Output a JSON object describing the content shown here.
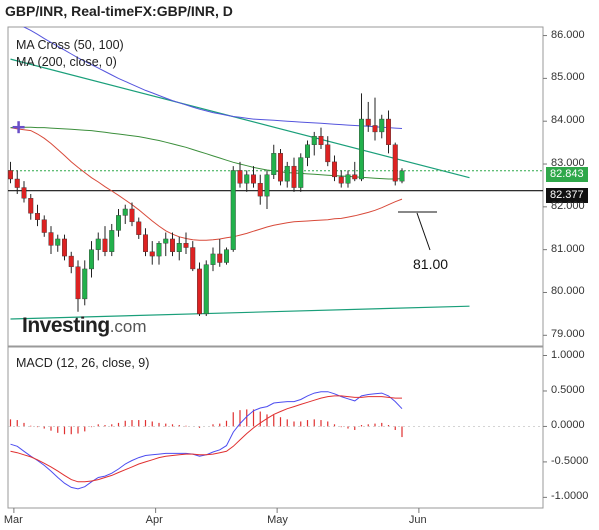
{
  "header": {
    "title": "GBP/INR, Real-timeFX:GBP/INR, D"
  },
  "indicators": {
    "ma_cross": "MA Cross (50, 100)",
    "ma200": "MA (200, close, 0)",
    "macd": "MACD (12, 26, close, 9)"
  },
  "logo": {
    "brand": "Investing",
    "suffix": ".com"
  },
  "annotation": {
    "label": "81.00"
  },
  "price_tags": {
    "last": "82.843",
    "level": "82.377"
  },
  "colors": {
    "up": "#22b14c",
    "down": "#dd2222",
    "ma50": "#d84a3a",
    "ma100": "#3c8f3c",
    "ma200": "#5555dd",
    "trend": "#1a9f7a",
    "macd": "#4d4df0",
    "signal": "#e03030",
    "last_tag": "#2fa84a"
  },
  "chart_data": [
    {
      "type": "candlestick",
      "title": "GBP/INR, Real-timeFX:GBP/INR, D",
      "x_ticks": [
        "Mar",
        "Apr",
        "May",
        "Jun"
      ],
      "y_ticks": [
        "86.000",
        "85.000",
        "84.000",
        "83.000",
        "82.000",
        "81.000",
        "80.000",
        "79.000"
      ],
      "ylim": [
        78.75,
        86.2
      ],
      "ohlc": [
        [
          82.85,
          83.05,
          82.55,
          82.65
        ],
        [
          82.65,
          82.85,
          82.3,
          82.45
        ],
        [
          82.45,
          82.6,
          82.1,
          82.2
        ],
        [
          82.2,
          82.3,
          81.7,
          81.85
        ],
        [
          81.85,
          82.05,
          81.55,
          81.7
        ],
        [
          81.7,
          81.8,
          81.3,
          81.4
        ],
        [
          81.4,
          81.55,
          80.9,
          81.1
        ],
        [
          81.1,
          81.35,
          80.95,
          81.25
        ],
        [
          81.25,
          81.35,
          80.75,
          80.85
        ],
        [
          80.85,
          80.95,
          80.45,
          80.6
        ],
        [
          80.6,
          80.75,
          79.55,
          79.85
        ],
        [
          79.85,
          80.75,
          79.7,
          80.55
        ],
        [
          80.55,
          81.2,
          80.35,
          81.0
        ],
        [
          81.0,
          81.4,
          80.75,
          81.25
        ],
        [
          81.25,
          81.55,
          80.85,
          80.95
        ],
        [
          80.95,
          81.6,
          80.85,
          81.45
        ],
        [
          81.45,
          81.95,
          81.3,
          81.8
        ],
        [
          81.8,
          82.05,
          81.6,
          81.95
        ],
        [
          81.95,
          82.1,
          81.55,
          81.65
        ],
        [
          81.65,
          81.75,
          81.25,
          81.35
        ],
        [
          81.35,
          81.5,
          80.85,
          80.95
        ],
        [
          80.95,
          81.2,
          80.65,
          80.85
        ],
        [
          80.85,
          81.2,
          80.65,
          81.15
        ],
        [
          81.15,
          81.4,
          80.85,
          81.25
        ],
        [
          81.25,
          81.4,
          80.85,
          80.95
        ],
        [
          80.95,
          81.3,
          80.75,
          81.15
        ],
        [
          81.15,
          81.4,
          80.9,
          81.05
        ],
        [
          81.05,
          81.2,
          80.5,
          80.55
        ],
        [
          80.55,
          80.7,
          79.45,
          79.5
        ],
        [
          79.5,
          80.75,
          79.45,
          80.65
        ],
        [
          80.65,
          81.05,
          80.5,
          80.9
        ],
        [
          80.9,
          81.25,
          80.6,
          80.7
        ],
        [
          80.7,
          81.05,
          80.65,
          81.0
        ],
        [
          81.0,
          82.95,
          80.95,
          82.85
        ],
        [
          82.85,
          83.05,
          82.45,
          82.55
        ],
        [
          82.55,
          82.85,
          82.35,
          82.75
        ],
        [
          82.75,
          82.95,
          82.45,
          82.55
        ],
        [
          82.55,
          82.75,
          82.05,
          82.25
        ],
        [
          82.25,
          82.85,
          81.95,
          82.75
        ],
        [
          82.75,
          83.45,
          82.65,
          83.25
        ],
        [
          83.25,
          83.35,
          82.5,
          82.6
        ],
        [
          82.6,
          83.05,
          82.45,
          82.95
        ],
        [
          82.95,
          83.15,
          82.35,
          82.45
        ],
        [
          82.45,
          83.25,
          82.35,
          83.15
        ],
        [
          83.15,
          83.55,
          82.95,
          83.45
        ],
        [
          83.45,
          83.75,
          83.2,
          83.65
        ],
        [
          83.65,
          83.85,
          83.35,
          83.45
        ],
        [
          83.45,
          83.65,
          82.95,
          83.05
        ],
        [
          83.05,
          83.2,
          82.6,
          82.7
        ],
        [
          82.7,
          82.85,
          82.45,
          82.55
        ],
        [
          82.55,
          82.85,
          82.45,
          82.75
        ],
        [
          82.75,
          83.05,
          82.6,
          82.65
        ],
        [
          82.65,
          84.65,
          82.6,
          84.05
        ],
        [
          84.05,
          84.45,
          83.75,
          83.9
        ],
        [
          83.9,
          84.55,
          83.55,
          83.75
        ],
        [
          83.75,
          84.15,
          83.6,
          84.05
        ],
        [
          84.05,
          84.25,
          83.25,
          83.45
        ],
        [
          83.45,
          83.5,
          82.5,
          82.6
        ],
        [
          82.6,
          82.9,
          82.55,
          82.84
        ]
      ],
      "series": [
        {
          "name": "MA Cross (50, 100)",
          "values": [
            83.85,
            83.82,
            83.8,
            83.78,
            83.7,
            83.6,
            83.48,
            83.34,
            83.2,
            83.05,
            82.92,
            82.8,
            82.68,
            82.58,
            82.47,
            82.37,
            82.27,
            82.16,
            82.05,
            81.93,
            81.8,
            81.67,
            81.55,
            81.44,
            81.36,
            81.3,
            81.26,
            81.23,
            81.22,
            81.22,
            81.23,
            81.25,
            81.28,
            81.3,
            81.34,
            81.38,
            81.43,
            81.48,
            81.53,
            81.57,
            81.6,
            81.63,
            81.65,
            81.66,
            81.67,
            81.68,
            81.69,
            81.7,
            81.72,
            81.73,
            81.76,
            81.79,
            81.83,
            81.87,
            81.92,
            81.98,
            82.05,
            82.12,
            82.18
          ]
        },
        {
          "name": "MA Cross (50, 100)",
          "values": [
            83.85,
            83.86,
            83.86,
            83.86,
            83.85,
            83.85,
            83.84,
            83.83,
            83.82,
            83.81,
            83.8,
            83.79,
            83.78,
            83.76,
            83.74,
            83.72,
            83.7,
            83.68,
            83.66,
            83.64,
            83.61,
            83.58,
            83.55,
            83.51,
            83.47,
            83.43,
            83.39,
            83.34,
            83.29,
            83.24,
            83.19,
            83.14,
            83.09,
            83.04,
            83.0,
            82.96,
            82.92,
            82.89,
            82.86,
            82.84,
            82.82,
            82.8,
            82.79,
            82.78,
            82.77,
            82.76,
            82.75,
            82.74,
            82.73,
            82.72,
            82.71,
            82.7,
            82.69,
            82.68,
            82.67,
            82.66,
            82.65,
            82.65,
            82.66
          ]
        },
        {
          "name": "MA (200, close, 0)",
          "values": [
            86.35,
            86.28,
            86.2,
            86.12,
            86.03,
            85.93,
            85.84,
            85.75,
            85.66,
            85.57,
            85.48,
            85.4,
            85.32,
            85.24,
            85.16,
            85.08,
            85.0,
            84.93,
            84.86,
            84.79,
            84.72,
            84.66,
            84.6,
            84.54,
            84.48,
            84.43,
            84.38,
            84.33,
            84.28,
            84.24,
            84.2,
            84.17,
            84.14,
            84.11,
            84.09,
            84.07,
            84.05,
            84.04,
            84.03,
            84.02,
            84.01,
            84.0,
            83.99,
            83.98,
            83.97,
            83.96,
            83.95,
            83.94,
            83.93,
            83.92,
            83.91,
            83.9,
            83.89,
            83.88,
            83.87,
            83.86,
            83.85,
            83.84,
            83.83
          ]
        }
      ],
      "trendlines": [
        {
          "from": [
            0,
            85.45
          ],
          "to": [
            68,
            82.68
          ]
        },
        {
          "from": [
            0,
            79.38
          ],
          "to": [
            68,
            79.68
          ]
        }
      ],
      "levels": {
        "last": 82.843,
        "support": 82.377,
        "projection": 81.0
      }
    },
    {
      "type": "line",
      "title": "MACD (12, 26, close, 9)",
      "y_ticks": [
        "1.0000",
        "0.5000",
        "0.0000",
        "-0.5000",
        "-1.0000"
      ],
      "ylim": [
        -1.15,
        1.12
      ],
      "series": [
        {
          "name": "MACD",
          "values": [
            -0.25,
            -0.28,
            -0.35,
            -0.42,
            -0.48,
            -0.55,
            -0.63,
            -0.72,
            -0.8,
            -0.86,
            -0.88,
            -0.85,
            -0.78,
            -0.72,
            -0.7,
            -0.66,
            -0.6,
            -0.53,
            -0.48,
            -0.44,
            -0.41,
            -0.4,
            -0.39,
            -0.38,
            -0.38,
            -0.38,
            -0.38,
            -0.39,
            -0.42,
            -0.4,
            -0.36,
            -0.33,
            -0.27,
            -0.08,
            0.04,
            0.14,
            0.22,
            0.26,
            0.28,
            0.33,
            0.34,
            0.35,
            0.35,
            0.38,
            0.43,
            0.47,
            0.49,
            0.49,
            0.46,
            0.42,
            0.39,
            0.36,
            0.43,
            0.45,
            0.46,
            0.47,
            0.43,
            0.35,
            0.25
          ]
        },
        {
          "name": "Signal",
          "values": [
            -0.35,
            -0.37,
            -0.4,
            -0.43,
            -0.47,
            -0.52,
            -0.57,
            -0.63,
            -0.69,
            -0.75,
            -0.78,
            -0.78,
            -0.77,
            -0.75,
            -0.72,
            -0.69,
            -0.65,
            -0.61,
            -0.57,
            -0.53,
            -0.5,
            -0.47,
            -0.44,
            -0.42,
            -0.41,
            -0.4,
            -0.39,
            -0.39,
            -0.4,
            -0.4,
            -0.39,
            -0.37,
            -0.35,
            -0.28,
            -0.19,
            -0.1,
            -0.02,
            0.05,
            0.11,
            0.17,
            0.21,
            0.25,
            0.28,
            0.31,
            0.34,
            0.37,
            0.4,
            0.42,
            0.43,
            0.43,
            0.42,
            0.41,
            0.41,
            0.42,
            0.42,
            0.42,
            0.41,
            0.4,
            0.4
          ]
        }
      ],
      "histogram": [
        0.1,
        0.09,
        0.05,
        0.01,
        -0.01,
        -0.03,
        -0.06,
        -0.09,
        -0.11,
        -0.11,
        -0.1,
        -0.07,
        -0.01,
        0.03,
        0.02,
        0.03,
        0.05,
        0.08,
        0.09,
        0.09,
        0.09,
        0.07,
        0.05,
        0.04,
        0.03,
        0.02,
        0.01,
        0.0,
        -0.02,
        0.0,
        0.03,
        0.04,
        0.08,
        0.2,
        0.23,
        0.24,
        0.24,
        0.21,
        0.17,
        0.16,
        0.13,
        0.1,
        0.07,
        0.07,
        0.09,
        0.1,
        0.09,
        0.07,
        0.03,
        -0.01,
        -0.03,
        -0.05,
        0.02,
        0.03,
        0.04,
        0.05,
        0.02,
        -0.05,
        -0.15
      ]
    }
  ]
}
